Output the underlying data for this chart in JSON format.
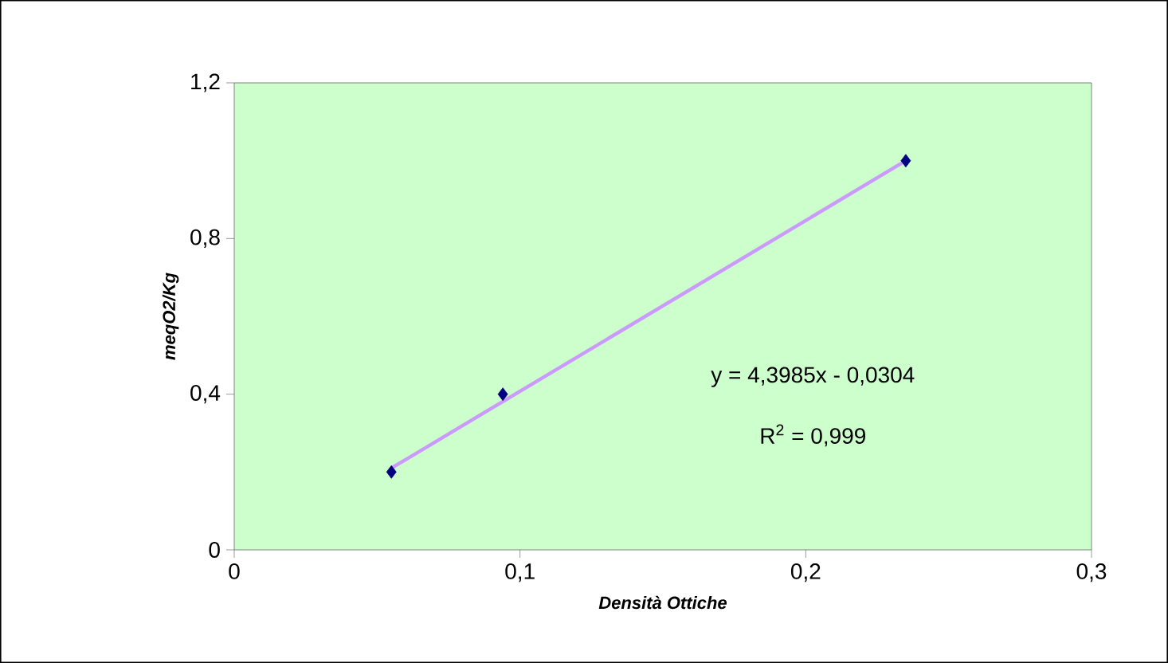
{
  "chart_data": {
    "type": "scatter",
    "xlabel": "Densità Ottiche",
    "ylabel": "meqO2/Kg",
    "xlim": [
      0,
      0.3
    ],
    "ylim": [
      0,
      1.2
    ],
    "xticks": [
      0,
      {
        "value": 0.1,
        "label": "0,1"
      },
      {
        "value": 0.2,
        "label": "0,2"
      },
      {
        "value": 0.3,
        "label": "0,3"
      }
    ],
    "yticks": [
      0,
      {
        "value": 0.4,
        "label": "0,4"
      },
      {
        "value": 0.8,
        "label": "0,8"
      },
      {
        "value": 1.2,
        "label": "1,2"
      }
    ],
    "series": [
      {
        "color": "#000080",
        "marker": "diamond",
        "x": [
          0.055,
          0.094,
          0.235
        ],
        "values": [
          0.2,
          0.4,
          1.0
        ]
      },
      {
        "type": "line",
        "color": "#cc99ff",
        "marker": "none",
        "line_style": "solid",
        "x": [
          0.055,
          0.235
        ],
        "values": [
          0.21,
          1.0
        ]
      }
    ],
    "annotations": [
      "y = 4,3985x - 0,0304",
      "R$^{2}$ = 0,999"
    ],
    "grid": false
  }
}
